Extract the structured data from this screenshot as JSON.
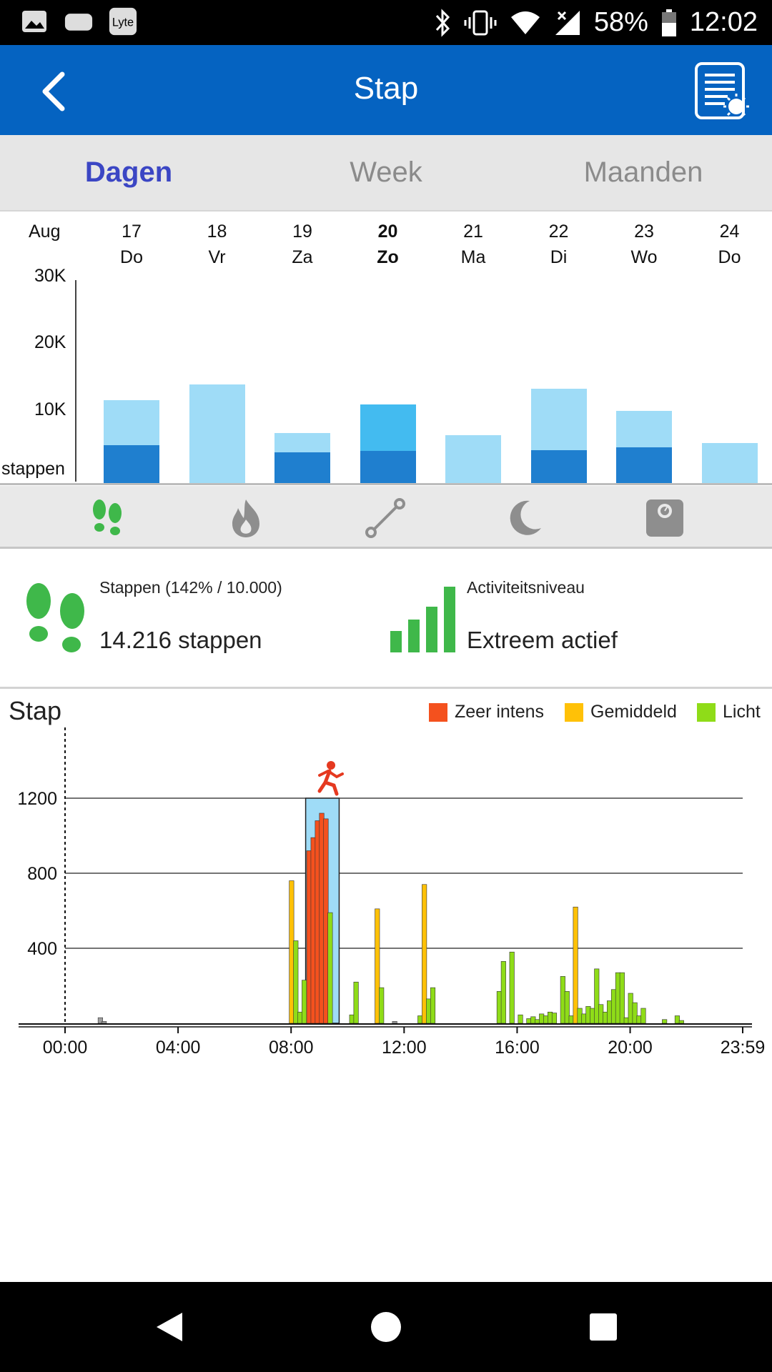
{
  "status_bar": {
    "battery": "58%",
    "time": "12:02",
    "left_icons": [
      "image-icon",
      "cloud-icon",
      "lyte-icon"
    ],
    "right_icons": [
      "bluetooth-icon",
      "vibrate-icon",
      "wifi-icon",
      "no-signal-icon",
      "battery-icon"
    ]
  },
  "app_bar": {
    "title": "Stap"
  },
  "tabs": [
    {
      "label": "Dagen",
      "active": true
    },
    {
      "label": "Week",
      "active": false
    },
    {
      "label": "Maanden",
      "active": false
    }
  ],
  "week_chart": {
    "month_label": "Aug",
    "y_labels": [
      "30K",
      "20K",
      "10K",
      "stappen"
    ],
    "days": [
      {
        "num": "17",
        "name": "Do",
        "total": 15200,
        "dark": 6900,
        "selected": false
      },
      {
        "num": "18",
        "name": "Vr",
        "total": 18100,
        "dark": 0,
        "selected": false
      },
      {
        "num": "19",
        "name": "Za",
        "total": 9200,
        "dark": 5600,
        "selected": false
      },
      {
        "num": "20",
        "name": "Zo",
        "total": 14400,
        "dark": 5900,
        "selected": true
      },
      {
        "num": "21",
        "name": "Ma",
        "total": 8800,
        "dark": 0,
        "selected": false
      },
      {
        "num": "22",
        "name": "Di",
        "total": 17300,
        "dark": 6000,
        "selected": false
      },
      {
        "num": "23",
        "name": "Wo",
        "total": 13200,
        "dark": 6600,
        "selected": false
      },
      {
        "num": "24",
        "name": "Do",
        "total": 7300,
        "dark": 0,
        "selected": false
      }
    ],
    "colors": {
      "light": "#9fdcf7",
      "dark": "#1f7fcf",
      "selected_light": "#43bbf0"
    }
  },
  "metric_tabs": [
    "footsteps-icon",
    "flame-icon",
    "distance-icon",
    "moon-icon",
    "scale-icon"
  ],
  "summary": {
    "steps_label": "Stappen (142% / 10.000)",
    "steps_value": "14.216 stappen",
    "activity_label": "Activiteitsniveau",
    "activity_value": "Extreem actief"
  },
  "chart_data": {
    "type": "bar",
    "title": "Stap",
    "legend": [
      "Zeer intens",
      "Gemiddeld",
      "Licht"
    ],
    "colors": {
      "Zeer intens": "#f4511e",
      "Gemiddeld": "#ffc107",
      "Licht": "#8fdc18",
      "Inactief": "#9e9e9e"
    },
    "y_ticks": [
      400,
      800,
      1200
    ],
    "ylim": [
      0,
      1200
    ],
    "x_ticks": [
      "00:00",
      "04:00",
      "08:00",
      "12:00",
      "16:00",
      "20:00",
      "23:59"
    ],
    "x_range_minutes": [
      0,
      1439
    ],
    "bars": [
      {
        "t": 75,
        "v": 30,
        "c": "Inactief"
      },
      {
        "t": 83,
        "v": 10,
        "c": "Inactief"
      },
      {
        "t": 481,
        "v": 760,
        "c": "Gemiddeld"
      },
      {
        "t": 490,
        "v": 440,
        "c": "Licht"
      },
      {
        "t": 499,
        "v": 60,
        "c": "Licht"
      },
      {
        "t": 508,
        "v": 230,
        "c": "Licht"
      },
      {
        "t": 518,
        "v": 920,
        "c": "Zeer intens"
      },
      {
        "t": 527,
        "v": 990,
        "c": "Zeer intens"
      },
      {
        "t": 536,
        "v": 1080,
        "c": "Zeer intens"
      },
      {
        "t": 545,
        "v": 1120,
        "c": "Zeer intens"
      },
      {
        "t": 554,
        "v": 1090,
        "c": "Zeer intens"
      },
      {
        "t": 563,
        "v": 590,
        "c": "Licht"
      },
      {
        "t": 609,
        "v": 45,
        "c": "Licht"
      },
      {
        "t": 618,
        "v": 220,
        "c": "Licht"
      },
      {
        "t": 663,
        "v": 610,
        "c": "Gemiddeld"
      },
      {
        "t": 672,
        "v": 190,
        "c": "Licht"
      },
      {
        "t": 700,
        "v": 10,
        "c": "Inactief"
      },
      {
        "t": 754,
        "v": 40,
        "c": "Licht"
      },
      {
        "t": 763,
        "v": 740,
        "c": "Gemiddeld"
      },
      {
        "t": 772,
        "v": 130,
        "c": "Licht"
      },
      {
        "t": 781,
        "v": 190,
        "c": "Licht"
      },
      {
        "t": 922,
        "v": 170,
        "c": "Licht"
      },
      {
        "t": 931,
        "v": 330,
        "c": "Licht"
      },
      {
        "t": 949,
        "v": 380,
        "c": "Licht"
      },
      {
        "t": 967,
        "v": 45,
        "c": "Licht"
      },
      {
        "t": 985,
        "v": 25,
        "c": "Licht"
      },
      {
        "t": 994,
        "v": 35,
        "c": "Licht"
      },
      {
        "t": 1003,
        "v": 20,
        "c": "Licht"
      },
      {
        "t": 1012,
        "v": 50,
        "c": "Licht"
      },
      {
        "t": 1021,
        "v": 40,
        "c": "Licht"
      },
      {
        "t": 1030,
        "v": 60,
        "c": "Licht"
      },
      {
        "t": 1039,
        "v": 55,
        "c": "Licht"
      },
      {
        "t": 1057,
        "v": 250,
        "c": "Licht"
      },
      {
        "t": 1066,
        "v": 170,
        "c": "Licht"
      },
      {
        "t": 1075,
        "v": 40,
        "c": "Licht"
      },
      {
        "t": 1084,
        "v": 620,
        "c": "Gemiddeld"
      },
      {
        "t": 1093,
        "v": 80,
        "c": "Licht"
      },
      {
        "t": 1102,
        "v": 50,
        "c": "Licht"
      },
      {
        "t": 1111,
        "v": 90,
        "c": "Licht"
      },
      {
        "t": 1120,
        "v": 80,
        "c": "Licht"
      },
      {
        "t": 1129,
        "v": 290,
        "c": "Licht"
      },
      {
        "t": 1138,
        "v": 100,
        "c": "Licht"
      },
      {
        "t": 1147,
        "v": 60,
        "c": "Licht"
      },
      {
        "t": 1156,
        "v": 120,
        "c": "Licht"
      },
      {
        "t": 1165,
        "v": 180,
        "c": "Licht"
      },
      {
        "t": 1174,
        "v": 270,
        "c": "Licht"
      },
      {
        "t": 1183,
        "v": 270,
        "c": "Licht"
      },
      {
        "t": 1192,
        "v": 30,
        "c": "Licht"
      },
      {
        "t": 1201,
        "v": 160,
        "c": "Licht"
      },
      {
        "t": 1210,
        "v": 110,
        "c": "Licht"
      },
      {
        "t": 1219,
        "v": 40,
        "c": "Licht"
      },
      {
        "t": 1228,
        "v": 80,
        "c": "Licht"
      },
      {
        "t": 1273,
        "v": 20,
        "c": "Licht"
      },
      {
        "t": 1300,
        "v": 40,
        "c": "Licht"
      },
      {
        "t": 1309,
        "v": 15,
        "c": "Licht"
      }
    ],
    "peak_window": {
      "start": 517,
      "end": 576
    }
  },
  "nav_bar": [
    "back-nav-icon",
    "home-nav-icon",
    "recents-nav-icon"
  ]
}
